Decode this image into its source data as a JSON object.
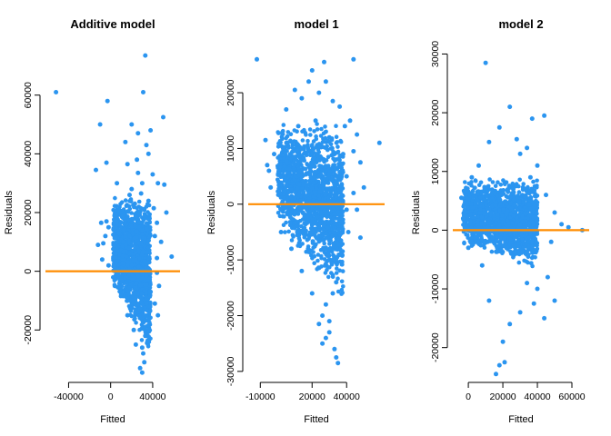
{
  "chart_data": [
    {
      "type": "scatter",
      "title": "Additive model",
      "xlabel": "Fitted",
      "ylabel": "Residuals",
      "xlim": [
        -62000,
        66000
      ],
      "ylim": [
        -36000,
        76000
      ],
      "xticks": [
        {
          "value": -40000,
          "label": "-40000"
        },
        {
          "value": 0,
          "label": "0"
        },
        {
          "value": 40000,
          "label": "40000"
        }
      ],
      "yticks": [
        {
          "value": -20000,
          "label": "-20000"
        },
        {
          "value": 0,
          "label": "0"
        },
        {
          "value": 20000,
          "label": "20000"
        },
        {
          "value": 40000,
          "label": "40000"
        },
        {
          "value": 60000,
          "label": "60000"
        }
      ],
      "reference_line": {
        "y": 0,
        "color": "#ff8c00"
      },
      "point_color": "#2b95f0",
      "points": [
        [
          -52000,
          61000
        ],
        [
          -3000,
          58000
        ],
        [
          33000,
          73500
        ],
        [
          31000,
          61000
        ],
        [
          -10000,
          50000
        ],
        [
          20000,
          50000
        ],
        [
          26000,
          47000
        ],
        [
          34000,
          43000
        ],
        [
          50000,
          52500
        ],
        [
          -4000,
          37000
        ],
        [
          -14000,
          34500
        ],
        [
          6000,
          30000
        ],
        [
          16000,
          36500
        ],
        [
          26000,
          33500
        ],
        [
          40000,
          33000
        ],
        [
          45000,
          30000
        ],
        [
          51000,
          29500
        ],
        [
          36000,
          40000
        ],
        [
          18000,
          26000
        ],
        [
          29000,
          26500
        ],
        [
          36000,
          24000
        ],
        [
          23000,
          23000
        ],
        [
          32000,
          21000
        ],
        [
          41000,
          21500
        ],
        [
          44000,
          16500
        ],
        [
          37000,
          18000
        ],
        [
          28000,
          16500
        ],
        [
          34000,
          14500
        ],
        [
          8000,
          13000
        ],
        [
          -4000,
          17000
        ],
        [
          -9000,
          16500
        ],
        [
          12000,
          10000
        ],
        [
          18000,
          8000
        ],
        [
          42000,
          12000
        ],
        [
          48000,
          10000
        ],
        [
          44000,
          4500
        ],
        [
          58000,
          5000
        ],
        [
          44000,
          -500
        ],
        [
          46000,
          -5000
        ],
        [
          38000,
          -7000
        ],
        [
          42000,
          -11000
        ],
        [
          45000,
          -15000
        ],
        [
          28000,
          -13000
        ],
        [
          32000,
          -17000
        ],
        [
          36000,
          -20000
        ],
        [
          33000,
          -22000
        ],
        [
          30000,
          -26000
        ],
        [
          35000,
          -24000
        ],
        [
          31000,
          -28000
        ],
        [
          32000,
          -31000
        ],
        [
          28000,
          -33000
        ],
        [
          30000,
          -34500
        ],
        [
          24000,
          -25000
        ],
        [
          22000,
          -20000
        ],
        [
          16000,
          -15000
        ],
        [
          10000,
          -8000
        ],
        [
          4000,
          -5000
        ],
        [
          -2000,
          2000
        ],
        [
          -8000,
          4000
        ],
        [
          -12000,
          9000
        ],
        [
          -5000,
          12000
        ],
        [
          -2000,
          15000
        ],
        [
          5000,
          6000
        ],
        [
          -7000,
          9500
        ],
        [
          53000,
          20000
        ],
        [
          30000,
          30000
        ],
        [
          25000,
          38000
        ],
        [
          14000,
          44000
        ],
        [
          38000,
          48000
        ],
        [
          20000,
          28000
        ]
      ],
      "cluster": {
        "x_from": 2000,
        "x_to": 38000,
        "y_top": 25000,
        "y_bottom_at_start": -5000,
        "y_bottom_at_end": -30000
      }
    },
    {
      "type": "scatter",
      "title": "model 1",
      "xlabel": "Fitted",
      "ylabel": "Residuals",
      "xlim": [
        -17000,
        62000
      ],
      "ylim": [
        -31000,
        28000
      ],
      "xticks": [
        {
          "value": -10000,
          "label": "-10000"
        },
        {
          "value": 20000,
          "label": "20000"
        },
        {
          "value": 40000,
          "label": "40000"
        }
      ],
      "yticks": [
        {
          "value": -30000,
          "label": "-30000"
        },
        {
          "value": -20000,
          "label": "-20000"
        },
        {
          "value": -10000,
          "label": "-10000"
        },
        {
          "value": 0,
          "label": "0"
        },
        {
          "value": 10000,
          "label": "10000"
        },
        {
          "value": 20000,
          "label": "20000"
        }
      ],
      "reference_line": {
        "y": 0,
        "color": "#ff8c00"
      },
      "point_color": "#2b95f0",
      "points": [
        [
          -12000,
          26000
        ],
        [
          27000,
          25500
        ],
        [
          44000,
          26000
        ],
        [
          20000,
          24000
        ],
        [
          28000,
          22000
        ],
        [
          10000,
          20500
        ],
        [
          14000,
          19000
        ],
        [
          32000,
          18500
        ],
        [
          36000,
          17500
        ],
        [
          42000,
          15000
        ],
        [
          39000,
          14000
        ],
        [
          -7000,
          11500
        ],
        [
          59000,
          11000
        ],
        [
          5000,
          17000
        ],
        [
          24000,
          20000
        ],
        [
          46000,
          12500
        ],
        [
          48000,
          7500
        ],
        [
          50000,
          3000
        ],
        [
          -5000,
          6000
        ],
        [
          -2000,
          9000
        ],
        [
          44000,
          9500
        ],
        [
          40000,
          -1000
        ],
        [
          46000,
          -1000
        ],
        [
          41000,
          -5000
        ],
        [
          48000,
          -6000
        ],
        [
          37000,
          -9000
        ],
        [
          30000,
          -10000
        ],
        [
          34000,
          -14000
        ],
        [
          32000,
          -16000
        ],
        [
          28000,
          -18000
        ],
        [
          26000,
          -20000
        ],
        [
          30000,
          -21000
        ],
        [
          24000,
          -21500
        ],
        [
          28000,
          -24000
        ],
        [
          26000,
          -25000
        ],
        [
          33000,
          -26000
        ],
        [
          34000,
          -27500
        ],
        [
          35000,
          -28500
        ],
        [
          30000,
          -23000
        ],
        [
          20000,
          -16000
        ],
        [
          14000,
          -12000
        ],
        [
          8000,
          -8000
        ],
        [
          2000,
          -5000
        ],
        [
          -4000,
          3000
        ],
        [
          -6000,
          7000
        ],
        [
          40000,
          5000
        ],
        [
          44000,
          2000
        ],
        [
          38000,
          9000
        ],
        [
          18000,
          22000
        ],
        [
          22000,
          15000
        ],
        [
          12000,
          14000
        ],
        [
          30000,
          12000
        ]
      ],
      "cluster": {
        "x_from": 0,
        "x_to": 38000,
        "y_top": 15000,
        "y_bottom_at_start": -4000,
        "y_bottom_at_end": -18000
      }
    },
    {
      "type": "scatter",
      "title": "model 2",
      "xlabel": "Fitted",
      "ylabel": "Residuals",
      "xlim": [
        -9000,
        70000
      ],
      "ylim": [
        -25000,
        31000
      ],
      "xticks": [
        {
          "value": 0,
          "label": "0"
        },
        {
          "value": 20000,
          "label": "20000"
        },
        {
          "value": 40000,
          "label": "40000"
        },
        {
          "value": 60000,
          "label": "60000"
        }
      ],
      "yticks": [
        {
          "value": -20000,
          "label": "-20000"
        },
        {
          "value": -10000,
          "label": "-10000"
        },
        {
          "value": 0,
          "label": "0"
        },
        {
          "value": 10000,
          "label": "10000"
        },
        {
          "value": 20000,
          "label": "20000"
        },
        {
          "value": 30000,
          "label": "30000"
        }
      ],
      "reference_line": {
        "y": 0,
        "color": "#ff8c00"
      },
      "point_color": "#2b95f0",
      "points": [
        [
          10000,
          28500
        ],
        [
          24000,
          21000
        ],
        [
          37000,
          19000
        ],
        [
          44000,
          19500
        ],
        [
          18000,
          17500
        ],
        [
          28000,
          15500
        ],
        [
          12000,
          15000
        ],
        [
          34000,
          14000
        ],
        [
          30000,
          13000
        ],
        [
          40000,
          11000
        ],
        [
          36000,
          9000
        ],
        [
          45000,
          6000
        ],
        [
          50000,
          3000
        ],
        [
          54000,
          1000
        ],
        [
          66000,
          0
        ],
        [
          58000,
          500
        ],
        [
          48000,
          -2000
        ],
        [
          46000,
          -8000
        ],
        [
          50000,
          -12000
        ],
        [
          44000,
          -15000
        ],
        [
          40000,
          -10000
        ],
        [
          34000,
          -9000
        ],
        [
          30000,
          -14000
        ],
        [
          24000,
          -16000
        ],
        [
          20000,
          -19000
        ],
        [
          18000,
          -23000
        ],
        [
          16000,
          -24500
        ],
        [
          21000,
          -22500
        ],
        [
          12000,
          -12000
        ],
        [
          8000,
          -6000
        ],
        [
          -4000,
          5500
        ],
        [
          -3000,
          2000
        ],
        [
          0,
          -3000
        ],
        [
          38000,
          -12500
        ],
        [
          2000,
          9000
        ],
        [
          6000,
          11000
        ],
        [
          26000,
          7000
        ],
        [
          32000,
          5000
        ]
      ],
      "cluster": {
        "x_from": -3000,
        "x_to": 40000,
        "y_top": 9000,
        "y_bottom_at_start": -3000,
        "y_bottom_at_end": -7000
      }
    }
  ]
}
